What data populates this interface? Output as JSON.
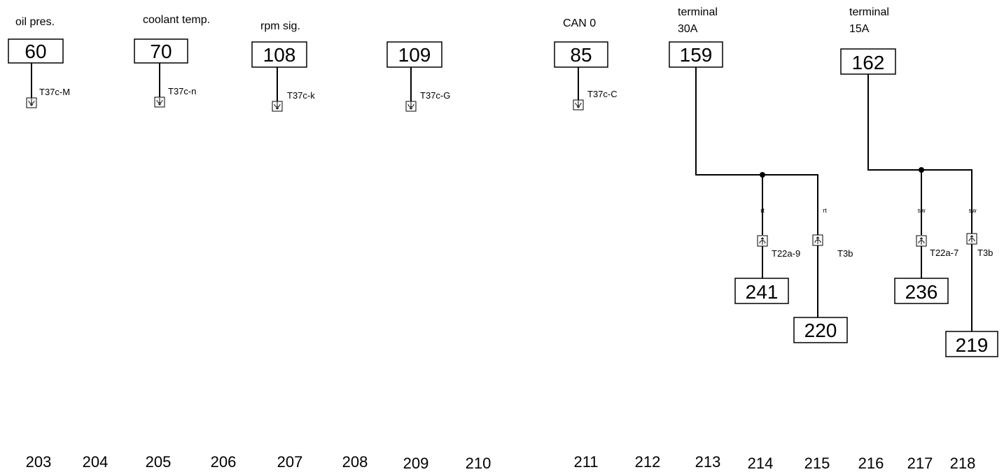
{
  "signals": {
    "oil": "oil pres.",
    "coolant": "coolant temp.",
    "rpm": "rpm sig.",
    "can": "CAN 0",
    "t30_line1": "terminal",
    "t30_line2": "30A",
    "t15_line1": "terminal",
    "t15_line2": "15A"
  },
  "refs": {
    "r60": "60",
    "r70": "70",
    "r108": "108",
    "r109": "109",
    "r85": "85",
    "r159": "159",
    "r162": "162",
    "r241": "241",
    "r220": "220",
    "r236": "236",
    "r219": "219"
  },
  "pins": {
    "p_oil": "T37c-M",
    "p_coolant": "T37c-n",
    "p_rpm": "T37c-k",
    "p_109": "T37c-G",
    "p_can": "T37c-C",
    "p_t22a9": "T22a-9",
    "p_t3b_1": "T3b",
    "p_t22a7": "T22a-7",
    "p_t3b_2": "T3b"
  },
  "wire_colors": {
    "rt_1": "rt",
    "rt_2": "rt",
    "sw_1": "sw",
    "sw_2": "sw"
  },
  "columns": [
    "203",
    "204",
    "205",
    "206",
    "207",
    "208",
    "209",
    "210",
    "211",
    "212",
    "213",
    "214",
    "215",
    "216",
    "217",
    "218"
  ]
}
